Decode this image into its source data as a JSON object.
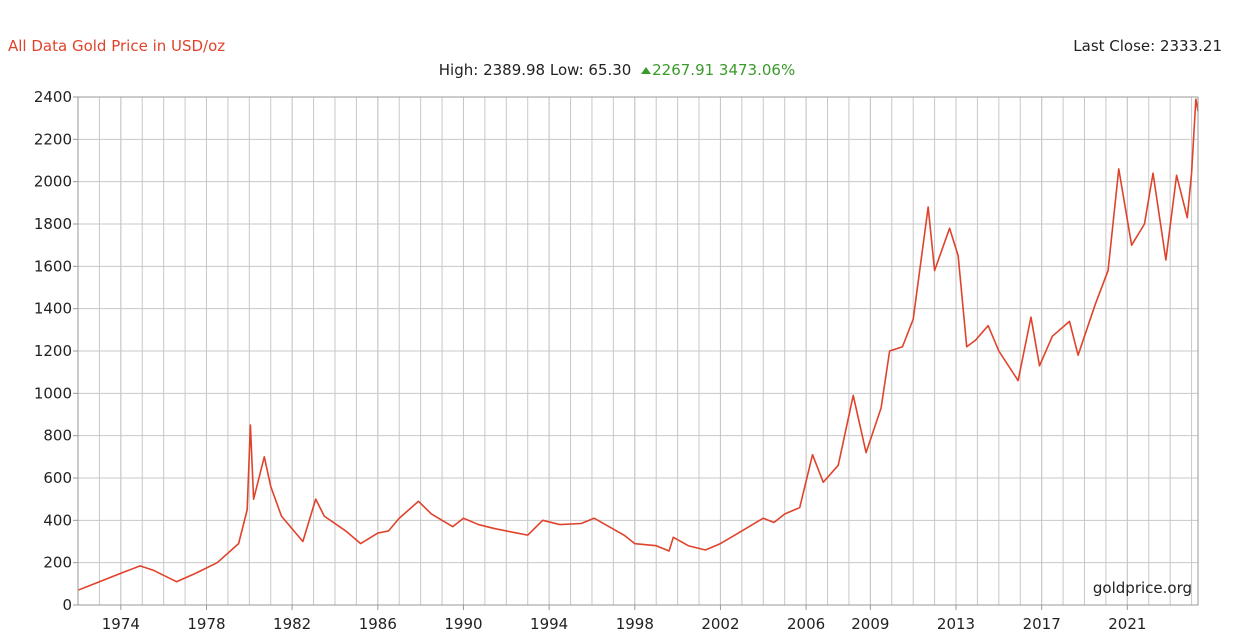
{
  "chart_data": {
    "type": "line",
    "title": "All Data Gold Price in USD/oz",
    "subtitle": "High: 2389.98 Low: 65.30",
    "change": "2267.91 3473.06%",
    "last_close": "Last Close: 2333.21",
    "source": "goldprice.org",
    "xlim": [
      1972,
      2024.3
    ],
    "xticks": [
      1974,
      1978,
      1982,
      1986,
      1990,
      1994,
      1998,
      2002,
      2006,
      2009,
      2013,
      2017,
      2021
    ],
    "ylim": [
      0,
      2400
    ],
    "yticks": [
      0,
      200,
      400,
      600,
      800,
      1000,
      1200,
      1400,
      1600,
      1800,
      2000,
      2200,
      2400
    ],
    "grid": true,
    "series": [
      {
        "color": "#e0432c",
        "x": [
          1972.0,
          1972.5,
          1973.5,
          1974.9,
          1975.5,
          1976.6,
          1977.5,
          1978.5,
          1979.5,
          1979.9,
          1980.05,
          1980.2,
          1980.7,
          1981.0,
          1981.5,
          1982.5,
          1983.1,
          1983.5,
          1984.5,
          1985.2,
          1986.0,
          1986.5,
          1987.0,
          1987.9,
          1988.5,
          1989.5,
          1990.0,
          1990.7,
          1991.5,
          1992.5,
          1993.0,
          1993.7,
          1994.5,
          1995.5,
          1996.1,
          1996.8,
          1997.5,
          1998.0,
          1999.0,
          1999.6,
          1999.8,
          2000.5,
          2001.3,
          2002.0,
          2002.5,
          2003.0,
          2004.0,
          2004.5,
          2005.0,
          2005.7,
          2006.3,
          2006.8,
          2007.5,
          2008.2,
          2008.8,
          2009.5,
          2009.9,
          2010.5,
          2011.0,
          2011.7,
          2012.0,
          2012.7,
          2013.1,
          2013.5,
          2013.9,
          2014.5,
          2015.0,
          2015.9,
          2016.5,
          2016.9,
          2017.5,
          2018.3,
          2018.7,
          2019.5,
          2020.1,
          2020.6,
          2021.2,
          2021.8,
          2022.2,
          2022.8,
          2023.3,
          2023.8,
          2024.0,
          2024.2,
          2024.3
        ],
        "values": [
          70,
          90,
          130,
          185,
          165,
          110,
          150,
          200,
          290,
          450,
          850,
          500,
          700,
          560,
          420,
          300,
          500,
          420,
          350,
          290,
          340,
          350,
          410,
          490,
          430,
          370,
          410,
          380,
          360,
          340,
          330,
          400,
          380,
          385,
          410,
          370,
          330,
          290,
          280,
          255,
          320,
          280,
          260,
          290,
          320,
          350,
          410,
          390,
          430,
          460,
          710,
          580,
          660,
          990,
          720,
          930,
          1200,
          1220,
          1350,
          1880,
          1580,
          1780,
          1650,
          1220,
          1250,
          1320,
          1200,
          1060,
          1360,
          1130,
          1270,
          1340,
          1180,
          1420,
          1580,
          2060,
          1700,
          1800,
          2040,
          1630,
          2030,
          1830,
          2040,
          2390,
          2333.21
        ]
      }
    ]
  }
}
